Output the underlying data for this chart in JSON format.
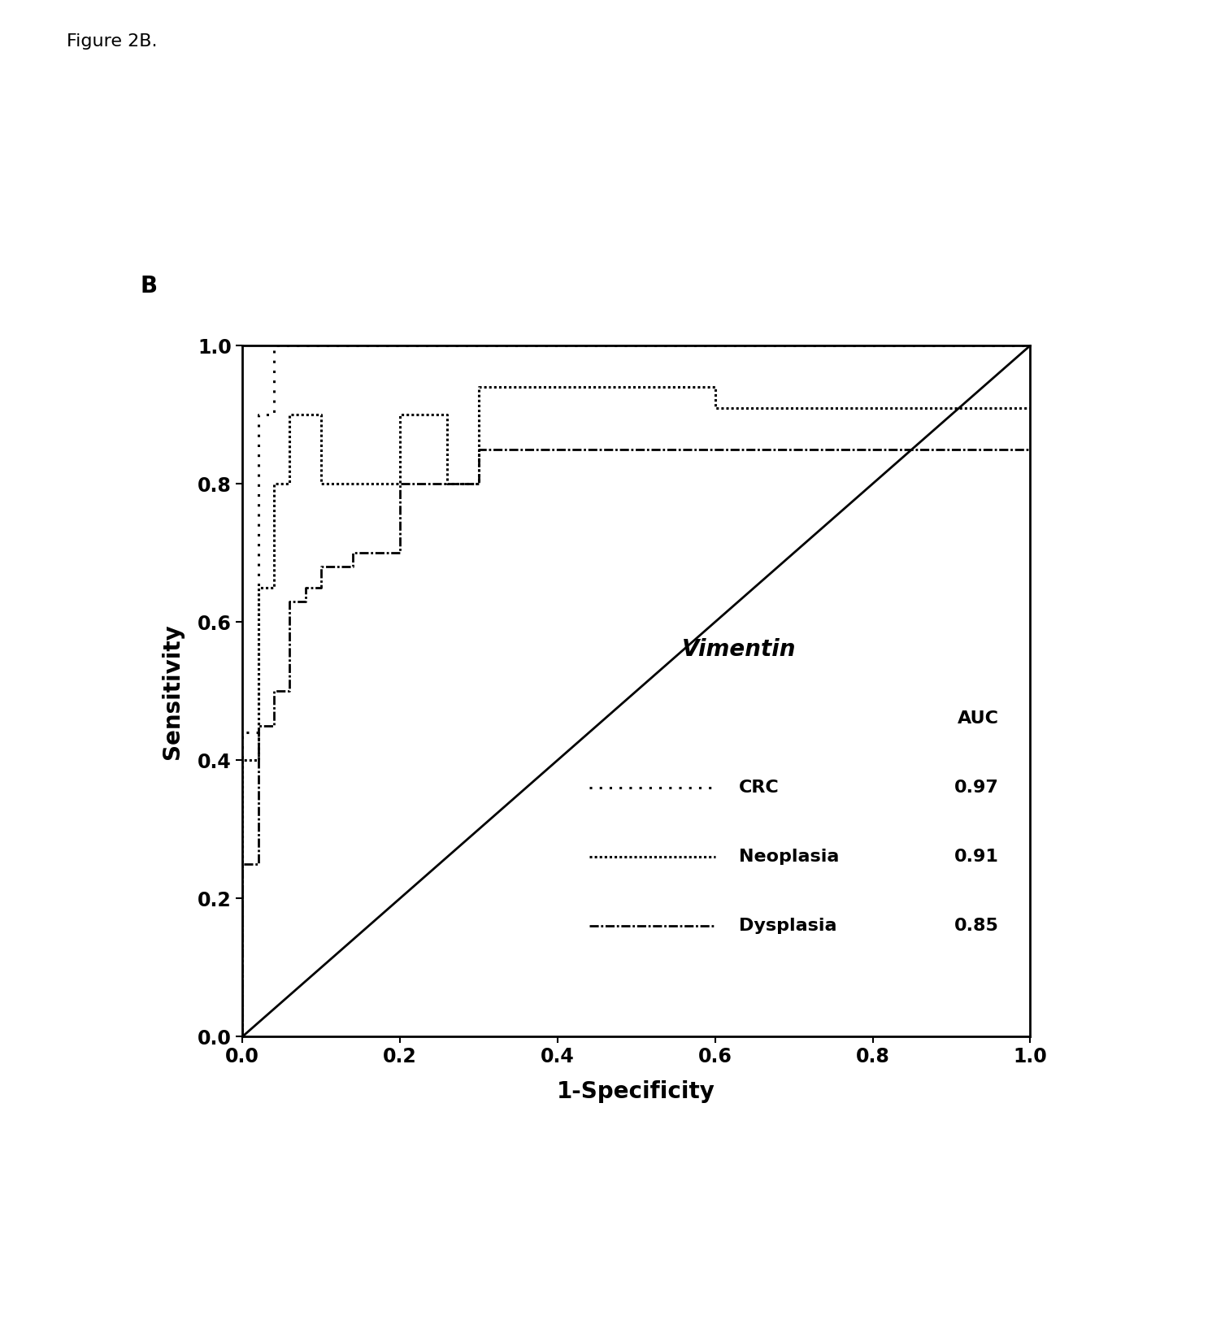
{
  "figure_label": "Figure 2B.",
  "panel_label": "B",
  "title_annotation": "Vimentin",
  "xlabel": "1-Specificity",
  "ylabel": "Sensitivity",
  "xlim": [
    0.0,
    1.0
  ],
  "ylim": [
    0.0,
    1.0
  ],
  "xticks": [
    0.0,
    0.2,
    0.4,
    0.6,
    0.8,
    1.0
  ],
  "yticks": [
    0.0,
    0.2,
    0.4,
    0.6,
    0.8,
    1.0
  ],
  "legend_entries": [
    {
      "label": "CRC",
      "auc": "0.97"
    },
    {
      "label": "Neoplasia",
      "auc": "0.91"
    },
    {
      "label": "Dysplasia",
      "auc": "0.85"
    }
  ],
  "auc_label": "AUC",
  "crc_x": [
    0.0,
    0.0,
    0.02,
    0.02,
    0.04,
    0.04,
    0.3,
    0.3,
    1.0
  ],
  "crc_y": [
    0.0,
    0.44,
    0.44,
    0.9,
    0.9,
    1.0,
    1.0,
    1.0,
    1.0
  ],
  "neoplasia_x": [
    0.0,
    0.0,
    0.02,
    0.02,
    0.04,
    0.04,
    0.06,
    0.06,
    0.1,
    0.1,
    0.2,
    0.2,
    0.26,
    0.26,
    0.3,
    0.3,
    0.6,
    0.6,
    1.0
  ],
  "neoplasia_y": [
    0.0,
    0.4,
    0.4,
    0.65,
    0.65,
    0.8,
    0.8,
    0.9,
    0.9,
    0.8,
    0.8,
    0.9,
    0.9,
    0.8,
    0.8,
    0.94,
    0.94,
    0.91,
    0.91
  ],
  "dysplasia_x": [
    0.0,
    0.0,
    0.02,
    0.02,
    0.04,
    0.04,
    0.06,
    0.06,
    0.08,
    0.08,
    0.1,
    0.1,
    0.14,
    0.14,
    0.2,
    0.2,
    0.3,
    0.3,
    1.0
  ],
  "dysplasia_y": [
    0.0,
    0.25,
    0.25,
    0.45,
    0.45,
    0.5,
    0.5,
    0.63,
    0.63,
    0.65,
    0.65,
    0.68,
    0.68,
    0.7,
    0.7,
    0.8,
    0.8,
    0.85,
    0.85
  ],
  "background_color": "#ffffff",
  "figure_label_fontsize": 16,
  "panel_label_fontsize": 20,
  "axis_label_fontsize": 20,
  "tick_fontsize": 17,
  "legend_fontsize": 16,
  "annotation_fontsize": 20
}
